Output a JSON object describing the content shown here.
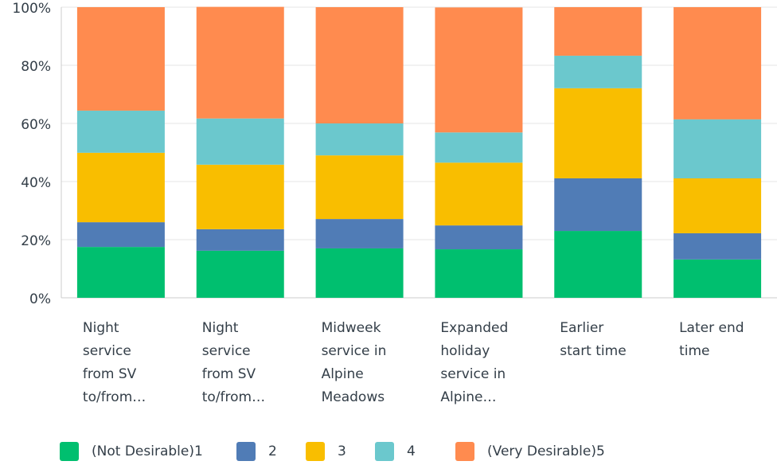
{
  "chart_data": {
    "type": "stacked_bar",
    "categories": [
      "Night service from SV to/from…",
      "Night service from SV to/from…",
      "Midweek service in Alpine Meadows",
      "Expanded holiday service in Alpine…",
      "Earlier start time",
      "Later end time"
    ],
    "series": [
      {
        "name": "(Not Desirable)1",
        "color": "#00bf6f",
        "values": [
          17.5,
          16.2,
          17.0,
          16.7,
          23.0,
          13.2
        ]
      },
      {
        "name": "2",
        "color": "#507cb6",
        "values": [
          8.5,
          7.4,
          10.1,
          8.2,
          18.1,
          9.0
        ]
      },
      {
        "name": "3",
        "color": "#f9be00",
        "values": [
          23.9,
          22.2,
          21.9,
          21.6,
          31.0,
          18.9
        ]
      },
      {
        "name": "4",
        "color": "#6bc8cd",
        "values": [
          14.5,
          15.9,
          11.0,
          10.4,
          11.2,
          20.3
        ]
      },
      {
        "name": "(Very Desirable)5",
        "color": "#ff8b4f",
        "values": [
          35.6,
          38.4,
          40.0,
          43.0,
          16.7,
          38.6
        ]
      }
    ],
    "ylim": [
      0,
      100
    ],
    "yticks": [
      {
        "value": 0,
        "label": "0%"
      },
      {
        "value": 20,
        "label": "20%"
      },
      {
        "value": 40,
        "label": "40%"
      },
      {
        "value": 60,
        "label": "60%"
      },
      {
        "value": 80,
        "label": "80%"
      },
      {
        "value": 100,
        "label": "100%"
      }
    ],
    "grid": true
  }
}
